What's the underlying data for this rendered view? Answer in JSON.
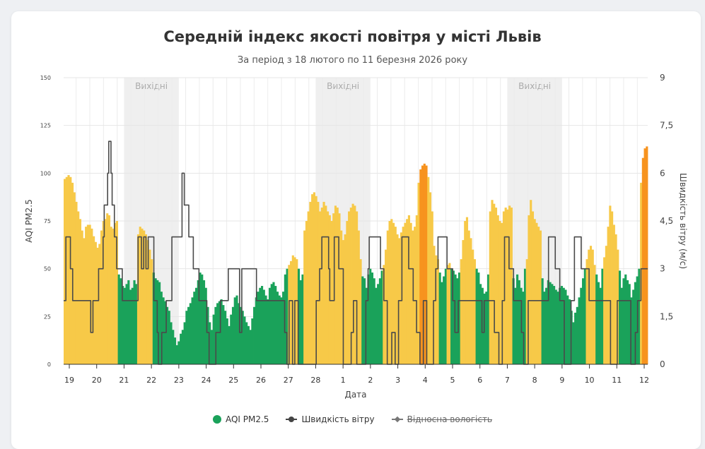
{
  "chart_data": {
    "type": "bar+line",
    "title": "Середній індекс якості повітря у місті Львів",
    "subtitle": "За період з 18 лютого по 11 березня 2026 року",
    "xlabel": "Дата",
    "ylabel_left": "AQI PM2.5",
    "ylabel_right": "Швидкість вітру (м/с)",
    "ylim_left": [
      0,
      150
    ],
    "ylim_right": [
      0,
      9
    ],
    "yticks_left": [
      "0",
      "25",
      "50",
      "75",
      "100",
      "125",
      "150"
    ],
    "yticks_right": [
      "0",
      "1,5",
      "3",
      "4,5",
      "6",
      "7,5",
      "9"
    ],
    "x_tick_labels": [
      "19",
      "20",
      "21",
      "22",
      "23",
      "24",
      "25",
      "26",
      "27",
      "28",
      "1",
      "2",
      "3",
      "4",
      "5",
      "6",
      "7",
      "8",
      "9",
      "10",
      "11",
      "12"
    ],
    "weekend_label": "Вихідні",
    "weekend_days": [
      [
        2,
        4
      ],
      [
        9,
        11
      ],
      [
        16,
        18
      ]
    ],
    "aqi_colors": {
      "good": "#1aa25a",
      "moderate": "#f7c948",
      "usg": "#f7931e"
    },
    "series": [
      {
        "name": "AQI PM2.5",
        "type": "bar",
        "color": "#1aa25a",
        "interval_hours": 2,
        "values": [
          97,
          98,
          99,
          98,
          95,
          90,
          85,
          80,
          76,
          70,
          66,
          72,
          73,
          73,
          71,
          67,
          64,
          61,
          63,
          70,
          75,
          76,
          79,
          78,
          72,
          71,
          74,
          75,
          47,
          45,
          41,
          40,
          42,
          44,
          39,
          40,
          44,
          42,
          68,
          72,
          71,
          70,
          68,
          65,
          60,
          55,
          48,
          45,
          44,
          43,
          38,
          35,
          33,
          30,
          28,
          22,
          18,
          14,
          10,
          12,
          16,
          18,
          22,
          28,
          30,
          32,
          35,
          38,
          40,
          44,
          48,
          47,
          44,
          40,
          30,
          22,
          18,
          26,
          30,
          32,
          33,
          34,
          31,
          28,
          24,
          20,
          26,
          30,
          35,
          36,
          32,
          30,
          28,
          25,
          22,
          20,
          18,
          24,
          30,
          35,
          38,
          40,
          41,
          39,
          36,
          34,
          40,
          42,
          43,
          41,
          38,
          36,
          35,
          38,
          47,
          50,
          52,
          54,
          57,
          56,
          55,
          50,
          44,
          47,
          70,
          75,
          80,
          85,
          89,
          90,
          88,
          85,
          80,
          82,
          85,
          83,
          80,
          78,
          75,
          79,
          83,
          82,
          79,
          70,
          65,
          68,
          75,
          80,
          82,
          84,
          83,
          80,
          70,
          55,
          46,
          45,
          40,
          47,
          50,
          48,
          45,
          40,
          42,
          45,
          49,
          52,
          60,
          70,
          75,
          76,
          74,
          72,
          68,
          66,
          69,
          72,
          74,
          76,
          78,
          74,
          70,
          72,
          78,
          95,
          102,
          104,
          105,
          104,
          98,
          90,
          80,
          62,
          57,
          55,
          48,
          43,
          46,
          50,
          52,
          53,
          50,
          49,
          47,
          45,
          48,
          55,
          65,
          75,
          77,
          70,
          66,
          60,
          55,
          50,
          48,
          42,
          40,
          37,
          38,
          47,
          80,
          86,
          84,
          82,
          78,
          75,
          74,
          80,
          82,
          81,
          83,
          82,
          45,
          40,
          47,
          44,
          40,
          38,
          50,
          55,
          78,
          86,
          80,
          76,
          74,
          72,
          70,
          45,
          38,
          40,
          44,
          43,
          42,
          41,
          39,
          38,
          40,
          41,
          40,
          39,
          36,
          34,
          28,
          22,
          27,
          30,
          35,
          40,
          45,
          50,
          55,
          60,
          62,
          60,
          52,
          47,
          43,
          40,
          50,
          56,
          62,
          72,
          83,
          80,
          73,
          68,
          60,
          49,
          40,
          45,
          47,
          44,
          42,
          35,
          39,
          43,
          46,
          50,
          95,
          108,
          113,
          114
        ]
      },
      {
        "name": "Швидкість вітру",
        "type": "line",
        "color": "#444444",
        "interval_hours": 2,
        "values": [
          2,
          2,
          4,
          4,
          4,
          4,
          3,
          3,
          2,
          2,
          2,
          2,
          2,
          2,
          2,
          2,
          2,
          2,
          2,
          2,
          2,
          2,
          2,
          2,
          1,
          1,
          2,
          2,
          2,
          2,
          2,
          3,
          3,
          3,
          3,
          4,
          5,
          5,
          5,
          6,
          7,
          7,
          6,
          5,
          5,
          4,
          4,
          3,
          3,
          3,
          3,
          3,
          2,
          2,
          2,
          2,
          2,
          2,
          2,
          2,
          2,
          2,
          2,
          2,
          2,
          2,
          4,
          4,
          4,
          3,
          3,
          4,
          4,
          3,
          3,
          4,
          4,
          4,
          4,
          4,
          2,
          2,
          2,
          1,
          0,
          0,
          0,
          1,
          1,
          1,
          1,
          2,
          2,
          2,
          2,
          2,
          4,
          4,
          4,
          4,
          4,
          4,
          4,
          4,
          4,
          6,
          6,
          5,
          5,
          5,
          5,
          4,
          4,
          4,
          4,
          3,
          3,
          3,
          3,
          3,
          2,
          2,
          2,
          2,
          2,
          2,
          2,
          1,
          1,
          0,
          0,
          0,
          0,
          0,
          0,
          1,
          1,
          1,
          1,
          2,
          2,
          2,
          2,
          2,
          2,
          2,
          3,
          3,
          3,
          3,
          3,
          3,
          3,
          3,
          3,
          3,
          1,
          1,
          3,
          3,
          3,
          3,
          3,
          3,
          3,
          3,
          3,
          3,
          3,
          3,
          3,
          2,
          2,
          2,
          2,
          2,
          2,
          2,
          2,
          2,
          2,
          2,
          2,
          2,
          2,
          2,
          2,
          2,
          2,
          2,
          2,
          2,
          2,
          2,
          2,
          2,
          1,
          1,
          0,
          0,
          2,
          2,
          2,
          0,
          0,
          2,
          2,
          2,
          0,
          0,
          0,
          0,
          0,
          0,
          0,
          0,
          0,
          0,
          0,
          0,
          0,
          0,
          0,
          0,
          2,
          2,
          2,
          3,
          3,
          4,
          4,
          4,
          4,
          4,
          4,
          3,
          2,
          2,
          2,
          2,
          4,
          4,
          4,
          4,
          3,
          3,
          3,
          3,
          0,
          0,
          0,
          0,
          0,
          0,
          0,
          1,
          1,
          2,
          2,
          2,
          0,
          0,
          0,
          0,
          0,
          0,
          0,
          0,
          2,
          2,
          3,
          4,
          4,
          4,
          4,
          4,
          4,
          4,
          4,
          4,
          4,
          3,
          3,
          3,
          2,
          2,
          2,
          0,
          0,
          0,
          0,
          1,
          1,
          1,
          0,
          0,
          0,
          2,
          2,
          2,
          4,
          4,
          4,
          4,
          4,
          4,
          3,
          3,
          3,
          3,
          2,
          2,
          2,
          1,
          1,
          1,
          0,
          0,
          0,
          2,
          2,
          2,
          0,
          0,
          0,
          0,
          0,
          0,
          2,
          2,
          3,
          3,
          4,
          4,
          4,
          4,
          4,
          4,
          4,
          4,
          3,
          3,
          3,
          3,
          3,
          2,
          2,
          1,
          1,
          1,
          2,
          2,
          2,
          2,
          2,
          2,
          2,
          2,
          2,
          2,
          2,
          2,
          2,
          2,
          2,
          2,
          2,
          2,
          2,
          2,
          2,
          1,
          1,
          2,
          2,
          2,
          2,
          2,
          2,
          2,
          2,
          2,
          1,
          1,
          1,
          1,
          0,
          0,
          0,
          2,
          2,
          4,
          4,
          4,
          4,
          3,
          3,
          3,
          3,
          2,
          2,
          2,
          2,
          2,
          2,
          2,
          1,
          1,
          0,
          0,
          0,
          0,
          2,
          2,
          2,
          2,
          2,
          2,
          2,
          2,
          2,
          2,
          2,
          2,
          2,
          2,
          2,
          2,
          2,
          2,
          4,
          4,
          4,
          4,
          4,
          4,
          3,
          3,
          3,
          3,
          2,
          2,
          2,
          2,
          0,
          0,
          0,
          0,
          0,
          0,
          2,
          2,
          2,
          4,
          4,
          4,
          4,
          4,
          4,
          3,
          3,
          3,
          3,
          3,
          3,
          3,
          2,
          2,
          2,
          2,
          2,
          2,
          2,
          2,
          2,
          2,
          2,
          2,
          2,
          2,
          2,
          2,
          2,
          2,
          2,
          0,
          0,
          0,
          0,
          0,
          0,
          2,
          2,
          2,
          2,
          2,
          2,
          2,
          2,
          2,
          2,
          2,
          2,
          0,
          0,
          0,
          0,
          1,
          1,
          2,
          2,
          2,
          3,
          3,
          3,
          3,
          3,
          3
        ]
      },
      {
        "name": "Відносна вологість",
        "type": "line",
        "hidden": true
      }
    ]
  },
  "legend": {
    "aqi": "AQI PM2.5",
    "wind": "Швидкість вітру",
    "humidity": "Відносна вологість"
  }
}
